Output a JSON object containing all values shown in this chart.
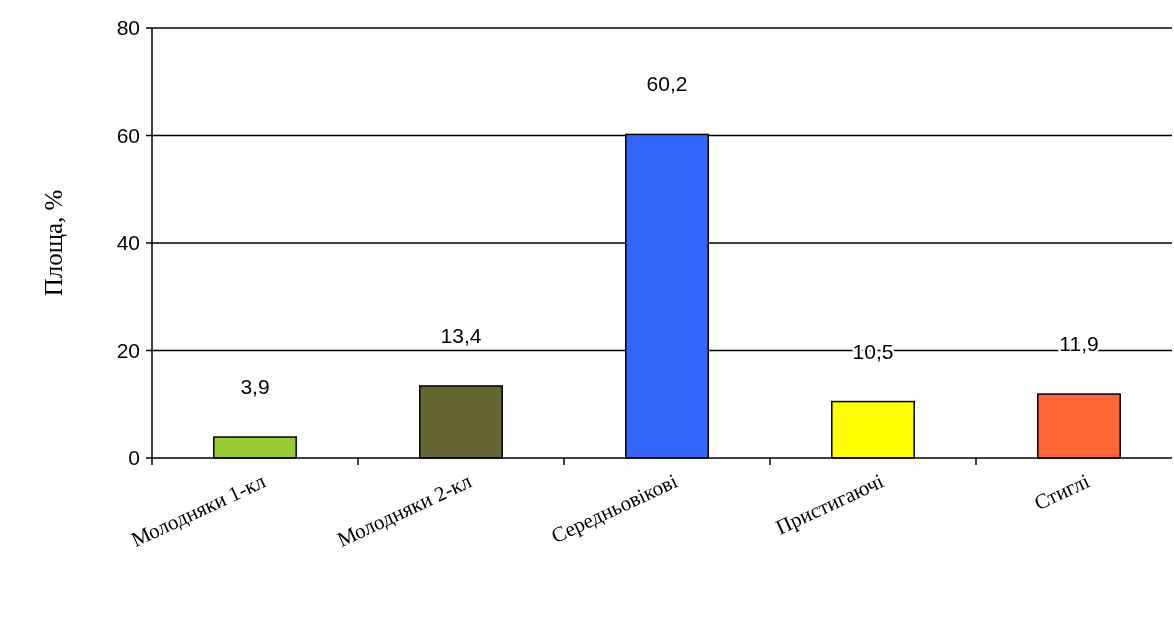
{
  "chart_data": {
    "type": "bar",
    "ylabel": "Площа, %",
    "categories": [
      "Молодняки 1-кл",
      "Молодняки 2-кл",
      "Середньовікові",
      "Пристигаючі",
      "Стиглі"
    ],
    "values": [
      3.9,
      13.4,
      60.2,
      10.5,
      11.9
    ],
    "value_labels": [
      "3,9",
      "13,4",
      "60,2",
      "10,5",
      "11,9"
    ],
    "colors": [
      "#99cc33",
      "#666633",
      "#3366ff",
      "#ffff00",
      "#ff6633"
    ],
    "ylim": [
      0,
      80
    ],
    "yticks": [
      0,
      20,
      40,
      60,
      80
    ],
    "grid": "y"
  }
}
